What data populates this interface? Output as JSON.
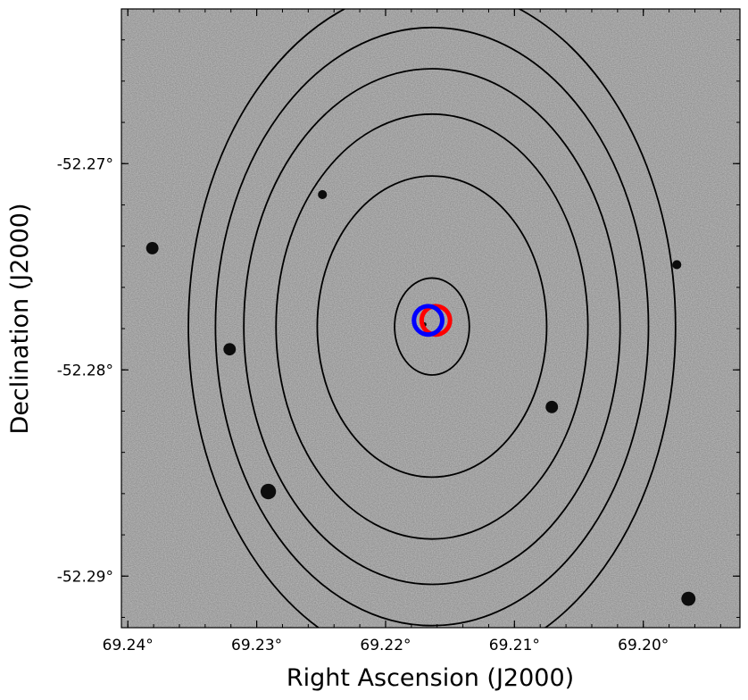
{
  "chart_data": {
    "type": "contour",
    "xlabel": "Right Ascension (J2000)",
    "ylabel": "Declination (J2000)",
    "xlim": [
      69.2405,
      69.1925
    ],
    "ylim": [
      -52.2625,
      -52.2925
    ],
    "x_ticks": [
      {
        "value": 69.24,
        "label": "69.24°"
      },
      {
        "value": 69.23,
        "label": "69.23°"
      },
      {
        "value": 69.22,
        "label": "69.22°"
      },
      {
        "value": 69.21,
        "label": "69.21°"
      },
      {
        "value": 69.2,
        "label": "69.20°"
      }
    ],
    "y_ticks": [
      {
        "value": -52.29,
        "label": "-52.29°"
      },
      {
        "value": -52.28,
        "label": "-52.28°"
      },
      {
        "value": -52.27,
        "label": "-52.27°"
      }
    ],
    "contour_color": "#000000",
    "contours": [
      {
        "level": 1,
        "ra_center": 69.2164,
        "dec_center": -52.2779,
        "half_width_ra": 0.0029,
        "half_height_dec": 0.00235
      },
      {
        "level": 2,
        "ra_center": 69.2164,
        "dec_center": -52.2779,
        "half_width_ra": 0.0089,
        "half_height_dec": 0.0073
      },
      {
        "level": 3,
        "ra_center": 69.2164,
        "dec_center": -52.2779,
        "half_width_ra": 0.0121,
        "half_height_dec": 0.0103
      },
      {
        "level": 4,
        "ra_center": 69.2164,
        "dec_center": -52.2779,
        "half_width_ra": 0.0146,
        "half_height_dec": 0.0125
      },
      {
        "level": 5,
        "ra_center": 69.2164,
        "dec_center": -52.2779,
        "half_width_ra": 0.0168,
        "half_height_dec": 0.0145
      },
      {
        "level": 6,
        "ra_center": 69.2164,
        "dec_center": -52.2779,
        "half_width_ra": 0.0189,
        "half_height_dec": 0.0165
      }
    ],
    "markers": [
      {
        "name": "red-circle",
        "color": "#ff0000",
        "ra": 69.2161,
        "dec": -52.2776,
        "radius_deg": 0.0011
      },
      {
        "name": "blue-circle",
        "color": "#0000ff",
        "ra": 69.2167,
        "dec": -52.2776,
        "radius_deg": 0.0011
      }
    ],
    "stars": [
      {
        "ra": 69.1965,
        "dec": -52.2911,
        "r": 0.00055
      },
      {
        "ra": 69.2291,
        "dec": -52.2859,
        "r": 0.0006
      },
      {
        "ra": 69.2071,
        "dec": -52.2818,
        "r": 0.00048
      },
      {
        "ra": 69.2321,
        "dec": -52.279,
        "r": 0.00048
      },
      {
        "ra": 69.2381,
        "dec": -52.2741,
        "r": 0.00048
      },
      {
        "ra": 69.1974,
        "dec": -52.2749,
        "r": 0.00035
      },
      {
        "ra": 69.2249,
        "dec": -52.2715,
        "r": 0.00035
      },
      {
        "ra": 69.217,
        "dec": -52.2778,
        "r": 0.00018
      }
    ],
    "background": "grayscale sky image",
    "grid": false
  }
}
